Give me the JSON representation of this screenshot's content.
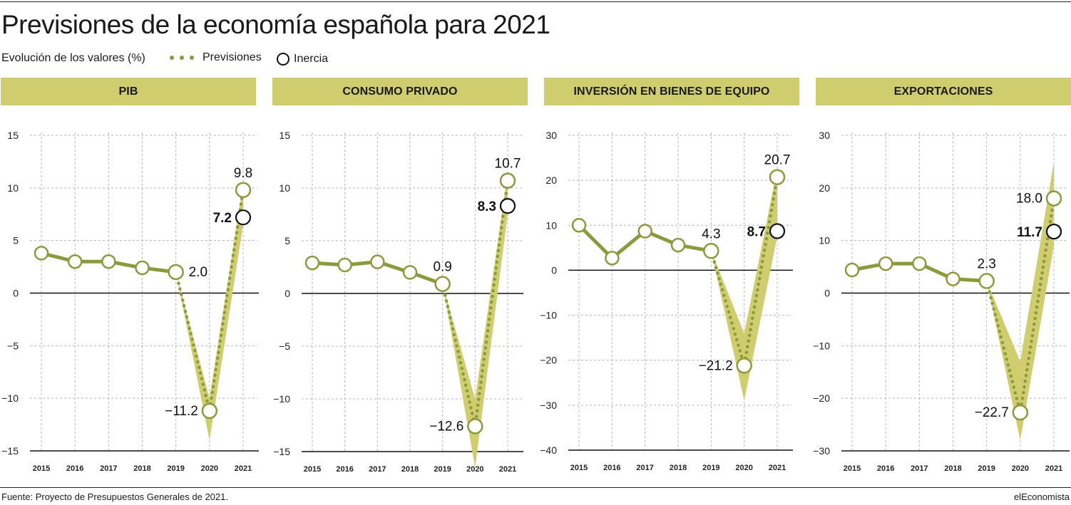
{
  "header": {
    "title": "Previsiones de la economía española para 2021",
    "subtitle": "Evolución de los valores (%)",
    "legend_forecast": "Previsiones",
    "legend_inertia": "Inercia"
  },
  "footer": {
    "source": "Fuente: Proyecto de Presupuestos Generales de 2021.",
    "brand": "elEconomista"
  },
  "colors": {
    "accent": "#8a9b3e",
    "band": "#cfcd6e",
    "header_bg": "#cfcd6e",
    "inertia": "#111111"
  },
  "chart_data": [
    {
      "type": "line",
      "title": "PIB",
      "x": [
        "2015",
        "2016",
        "2017",
        "2018",
        "2019",
        "2020",
        "2021"
      ],
      "ylim": [
        -15,
        15
      ],
      "yticks": [
        15,
        10,
        5,
        0,
        -5,
        -10,
        -15
      ],
      "series": [
        {
          "name": "Previsiones",
          "values": [
            3.8,
            3.0,
            3.0,
            2.4,
            2.0,
            -11.2,
            9.8
          ]
        },
        {
          "name": "Inercia",
          "values": [
            null,
            null,
            null,
            null,
            null,
            null,
            7.2
          ]
        }
      ],
      "band": {
        "x": [
          "2019",
          "2020",
          "2021"
        ],
        "low": [
          2.0,
          -14.0,
          6.5
        ],
        "high": [
          2.0,
          -10.0,
          10.5
        ]
      },
      "labels": [
        {
          "x": "2019",
          "text": "2.0",
          "value": 2.0,
          "pos": "right"
        },
        {
          "x": "2020",
          "text": "−11.2",
          "value": -11.2,
          "pos": "left"
        },
        {
          "x": "2021",
          "text": "9.8",
          "value": 9.8,
          "pos": "above"
        },
        {
          "x": "2021",
          "text": "7.2",
          "value": 7.2,
          "pos": "left-bold"
        }
      ],
      "grid": true
    },
    {
      "type": "line",
      "title": "CONSUMO PRIVADO",
      "x": [
        "2015",
        "2016",
        "2017",
        "2018",
        "2019",
        "2020",
        "2021"
      ],
      "ylim": [
        -15,
        15
      ],
      "yticks": [
        15,
        10,
        5,
        0,
        -5,
        -10,
        -15
      ],
      "series": [
        {
          "name": "Previsiones",
          "values": [
            2.9,
            2.7,
            3.0,
            2.0,
            0.9,
            -12.6,
            10.7
          ]
        },
        {
          "name": "Inercia",
          "values": [
            null,
            null,
            null,
            null,
            null,
            null,
            8.3
          ]
        }
      ],
      "band": {
        "x": [
          "2019",
          "2020",
          "2021"
        ],
        "low": [
          0.9,
          -16.5,
          7.5
        ],
        "high": [
          0.9,
          -10.0,
          11.5
        ]
      },
      "labels": [
        {
          "x": "2019",
          "text": "0.9",
          "value": 0.9,
          "pos": "above"
        },
        {
          "x": "2020",
          "text": "−12.6",
          "value": -12.6,
          "pos": "left"
        },
        {
          "x": "2021",
          "text": "10.7",
          "value": 10.7,
          "pos": "above"
        },
        {
          "x": "2021",
          "text": "8.3",
          "value": 8.3,
          "pos": "left-bold"
        }
      ],
      "grid": true
    },
    {
      "type": "line",
      "title": "INVERSIÓN EN BIENES DE EQUIPO",
      "x": [
        "2015",
        "2016",
        "2017",
        "2018",
        "2019",
        "2020",
        "2021"
      ],
      "ylim": [
        -40,
        30
      ],
      "yticks": [
        30,
        20,
        10,
        0,
        -10,
        -20,
        -30,
        -40
      ],
      "series": [
        {
          "name": "Previsiones",
          "values": [
            10.0,
            2.7,
            8.7,
            5.6,
            4.3,
            -21.2,
            20.7
          ]
        },
        {
          "name": "Inercia",
          "values": [
            null,
            null,
            null,
            null,
            null,
            null,
            8.7
          ]
        }
      ],
      "band": {
        "x": [
          "2019",
          "2020",
          "2021"
        ],
        "low": [
          4.3,
          -29.0,
          7.5
        ],
        "high": [
          4.3,
          -14.0,
          22.5
        ]
      },
      "labels": [
        {
          "x": "2019",
          "text": "4.3",
          "value": 4.3,
          "pos": "above"
        },
        {
          "x": "2020",
          "text": "−21.2",
          "value": -21.2,
          "pos": "left"
        },
        {
          "x": "2021",
          "text": "20.7",
          "value": 20.7,
          "pos": "above"
        },
        {
          "x": "2021",
          "text": "8.7",
          "value": 8.7,
          "pos": "left-bold"
        }
      ],
      "grid": true
    },
    {
      "type": "line",
      "title": "EXPORTACIONES",
      "x": [
        "2015",
        "2016",
        "2017",
        "2018",
        "2019",
        "2020",
        "2021"
      ],
      "ylim": [
        -30,
        30
      ],
      "yticks": [
        30,
        20,
        10,
        0,
        -10,
        -20,
        -30
      ],
      "series": [
        {
          "name": "Previsiones",
          "values": [
            4.4,
            5.6,
            5.6,
            2.7,
            2.3,
            -22.7,
            18.0
          ]
        },
        {
          "name": "Inercia",
          "values": [
            null,
            null,
            null,
            null,
            null,
            null,
            11.7
          ]
        }
      ],
      "band": {
        "x": [
          "2019",
          "2020",
          "2021"
        ],
        "low": [
          2.3,
          -28.0,
          9.0
        ],
        "high": [
          2.3,
          -13.0,
          25.0
        ]
      },
      "labels": [
        {
          "x": "2019",
          "text": "2.3",
          "value": 2.3,
          "pos": "above"
        },
        {
          "x": "2020",
          "text": "−22.7",
          "value": -22.7,
          "pos": "left"
        },
        {
          "x": "2021",
          "text": "18.0",
          "value": 18.0,
          "pos": "left"
        },
        {
          "x": "2021",
          "text": "11.7",
          "value": 11.7,
          "pos": "left-bold"
        }
      ],
      "grid": true
    }
  ]
}
